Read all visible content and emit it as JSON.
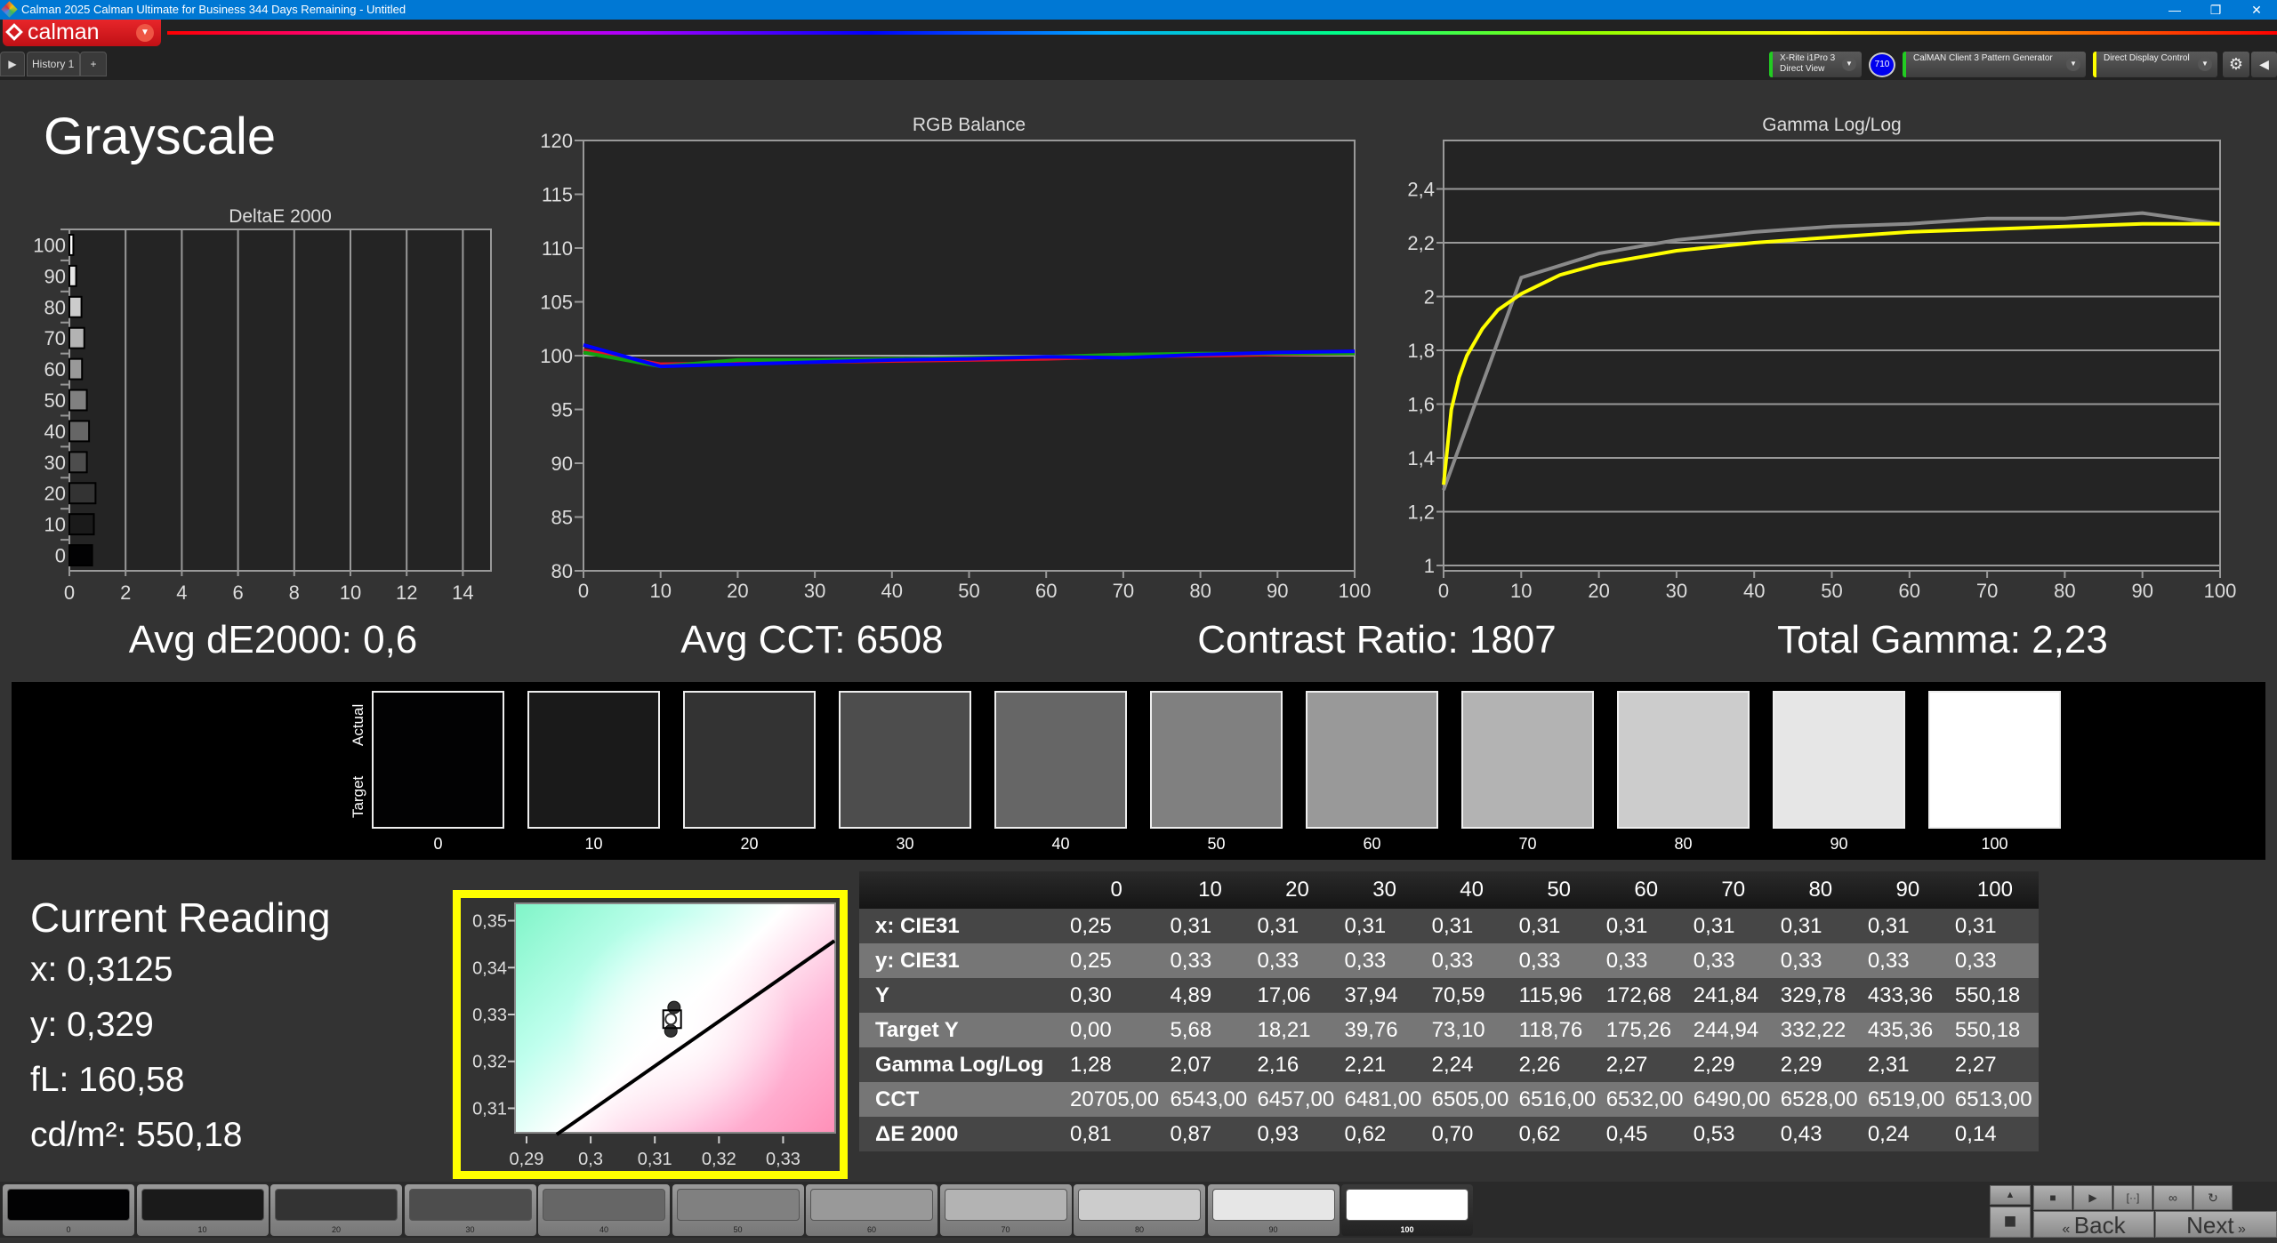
{
  "window": {
    "title": "Calman 2025 Calman Ultimate for Business 344 Days Remaining  - Untitled",
    "minimize": "—",
    "restore": "❐",
    "close": "✕"
  },
  "app": {
    "logo_text": "calman",
    "tab": "History 1",
    "tab_add": "+"
  },
  "toolbar": {
    "meter_line1": "X-Rite i1Pro 3",
    "meter_line2": "Direct View",
    "meter_badge": "710",
    "source": "CalMAN Client 3 Pattern Generator",
    "display": "Direct Display Control",
    "meter_accent": "#22cc22",
    "display_accent": "#ffff00"
  },
  "page": {
    "title": "Grayscale"
  },
  "summary": {
    "avg_de": "Avg dE2000: 0,6",
    "avg_cct": "Avg CCT: 6508",
    "contrast": "Contrast Ratio: 1807",
    "gamma": "Total Gamma: 2,23"
  },
  "swatches": {
    "actual_label": "Actual",
    "target_label": "Target",
    "levels": [
      "0",
      "10",
      "20",
      "30",
      "40",
      "50",
      "60",
      "70",
      "80",
      "90",
      "100"
    ],
    "colors": [
      "#020203",
      "#1a1a1a",
      "#333333",
      "#4d4d4d",
      "#666666",
      "#808080",
      "#999999",
      "#b3b3b3",
      "#cccccc",
      "#e6e6e6",
      "#ffffff"
    ]
  },
  "current": {
    "title": "Current Reading",
    "x": "x: 0,3125",
    "y": "y: 0,329",
    "fl": "fL: 160,58",
    "cdm2": "cd/m²: 550,18"
  },
  "table": {
    "headers": [
      "0",
      "10",
      "20",
      "30",
      "40",
      "50",
      "60",
      "70",
      "80",
      "90",
      "100"
    ],
    "rows": [
      {
        "label": "x: CIE31",
        "values": [
          "0,25",
          "0,31",
          "0,31",
          "0,31",
          "0,31",
          "0,31",
          "0,31",
          "0,31",
          "0,31",
          "0,31",
          "0,31"
        ]
      },
      {
        "label": "y: CIE31",
        "values": [
          "0,25",
          "0,33",
          "0,33",
          "0,33",
          "0,33",
          "0,33",
          "0,33",
          "0,33",
          "0,33",
          "0,33",
          "0,33"
        ]
      },
      {
        "label": "Y",
        "values": [
          "0,30",
          "4,89",
          "17,06",
          "37,94",
          "70,59",
          "115,96",
          "172,68",
          "241,84",
          "329,78",
          "433,36",
          "550,18"
        ]
      },
      {
        "label": "Target Y",
        "values": [
          "0,00",
          "5,68",
          "18,21",
          "39,76",
          "73,10",
          "118,76",
          "175,26",
          "244,94",
          "332,22",
          "435,36",
          "550,18"
        ]
      },
      {
        "label": "Gamma Log/Log",
        "values": [
          "1,28",
          "2,07",
          "2,16",
          "2,21",
          "2,24",
          "2,26",
          "2,27",
          "2,29",
          "2,29",
          "2,31",
          "2,27"
        ]
      },
      {
        "label": "CCT",
        "values": [
          "20705,00",
          "6543,00",
          "6457,00",
          "6481,00",
          "6505,00",
          "6516,00",
          "6532,00",
          "6490,00",
          "6528,00",
          "6519,00",
          "6513,00"
        ]
      },
      {
        "label": "ΔE 2000",
        "values": [
          "0,81",
          "0,87",
          "0,93",
          "0,62",
          "0,70",
          "0,62",
          "0,45",
          "0,53",
          "0,43",
          "0,24",
          "0,14"
        ]
      }
    ]
  },
  "bottom": {
    "back": "Back",
    "next": "Next"
  },
  "chart_data": [
    {
      "type": "bar",
      "orientation": "horizontal",
      "title": "DeltaE 2000",
      "categories": [
        "0",
        "10",
        "20",
        "30",
        "40",
        "50",
        "60",
        "70",
        "80",
        "90",
        "100"
      ],
      "values": [
        0.81,
        0.87,
        0.93,
        0.62,
        0.7,
        0.62,
        0.45,
        0.53,
        0.43,
        0.24,
        0.14
      ],
      "xlim": [
        0,
        15
      ],
      "xticks": [
        "0",
        "2",
        "4",
        "6",
        "8",
        "10",
        "12",
        "14"
      ],
      "grid": true
    },
    {
      "type": "line",
      "title": "RGB Balance",
      "x": [
        0,
        10,
        20,
        30,
        40,
        50,
        60,
        70,
        80,
        90,
        100
      ],
      "series": [
        {
          "color": "#e0102a",
          "values": [
            100.5,
            99.2,
            99.3,
            99.4,
            99.5,
            99.6,
            99.7,
            99.9,
            100.0,
            100.1,
            100.2
          ]
        },
        {
          "color": "#11a011",
          "values": [
            100.3,
            99.0,
            99.6,
            99.6,
            99.7,
            99.8,
            99.9,
            100.1,
            100.2,
            100.2,
            100.2
          ]
        },
        {
          "color": "#0000ff",
          "values": [
            101.0,
            99.0,
            99.2,
            99.4,
            99.6,
            99.7,
            99.9,
            99.8,
            100.1,
            100.3,
            100.4
          ]
        }
      ],
      "ylim": [
        80,
        120
      ],
      "yticks": [
        "80",
        "85",
        "90",
        "95",
        "100",
        "105",
        "110",
        "115",
        "120"
      ],
      "xticks": [
        "0",
        "10",
        "20",
        "30",
        "40",
        "50",
        "60",
        "70",
        "80",
        "90",
        "100"
      ],
      "reference": 100,
      "grid": false
    },
    {
      "type": "line",
      "title": "Gamma Log/Log",
      "series": [
        {
          "color": "#8a8a8a",
          "x": [
            0,
            10,
            20,
            30,
            40,
            50,
            60,
            70,
            80,
            90,
            100
          ],
          "values": [
            1.28,
            2.07,
            2.16,
            2.21,
            2.24,
            2.26,
            2.27,
            2.29,
            2.29,
            2.31,
            2.27
          ]
        },
        {
          "color": "#ffff00",
          "x": [
            0,
            1,
            2,
            3,
            5,
            7,
            10,
            15,
            20,
            30,
            40,
            50,
            60,
            70,
            80,
            90,
            100
          ],
          "values": [
            1.3,
            1.58,
            1.7,
            1.78,
            1.88,
            1.95,
            2.01,
            2.08,
            2.12,
            2.17,
            2.2,
            2.22,
            2.24,
            2.25,
            2.26,
            2.27,
            2.27
          ]
        }
      ],
      "ylim": [
        0.98,
        2.58
      ],
      "ytick_values": [
        1,
        1.2,
        1.4,
        1.6,
        1.8,
        2,
        2.2,
        2.4
      ],
      "yticks": [
        "1",
        "1,2",
        "1,4",
        "1,6",
        "1,8",
        "2",
        "2,2",
        "2,4"
      ],
      "xticks": [
        "0",
        "10",
        "20",
        "30",
        "40",
        "50",
        "60",
        "70",
        "80",
        "90",
        "100"
      ],
      "grid": true
    },
    {
      "type": "scatter",
      "title": "",
      "xlim": [
        0.2882,
        0.3384
      ],
      "ylim": [
        0.3044,
        0.3537
      ],
      "xtick_values": [
        0.29,
        0.3,
        0.31,
        0.32,
        0.33
      ],
      "xticks": [
        "0,29",
        "0,3",
        "0,31",
        "0,32",
        "0,33"
      ],
      "ytick_values": [
        0.31,
        0.32,
        0.33,
        0.34,
        0.35
      ],
      "yticks": [
        "0,31",
        "0,32",
        "0,33",
        "0,34",
        "0,35"
      ],
      "locus": [
        [
          0.2947,
          0.3044
        ],
        [
          0.338,
          0.3457
        ]
      ],
      "target": [
        0.3127,
        0.329
      ],
      "measured": [
        0.3125,
        0.329
      ],
      "history": [
        [
          0.313,
          0.3315
        ],
        [
          0.3125,
          0.3265
        ]
      ]
    }
  ]
}
